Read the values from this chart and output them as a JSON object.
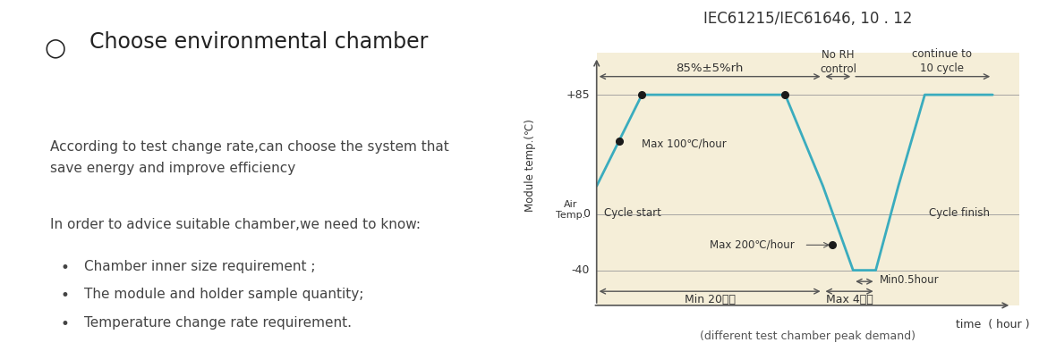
{
  "title": "IEC61215/IEC61646, 10 . 12",
  "bg_color": "#f5eed8",
  "line_color": "#3aacbe",
  "dot_color": "#1a1a1a",
  "text_color": "#333333",
  "heading": "Choose environmental chamber",
  "para1": "According to test change rate,can choose the system that\nsave energy and improve efficiency",
  "para2": "In order to advice suitable chamber,we need to know:",
  "bullets": [
    "Chamber inner size requirement ;",
    "The module and holder sample quantity;",
    "Temperature change rate requirement."
  ],
  "ylabel_main": "Module temp.(℃)",
  "ylabel_air": "Air\nTemp.",
  "xlabel": "time  ( hour )",
  "caption": "(different test chamber peak demand)",
  "annotations": {
    "humidity": "85%±5%rh",
    "no_rh": "No RH\ncontrol",
    "continue": "continue to\n10 cycle",
    "max100": "Max 100℃/hour",
    "max200": "Max 200℃/hour",
    "cycle_start": "Cycle start",
    "cycle_finish": "Cycle finish",
    "min05": "Min0.5hour",
    "min20": "Min 20小时",
    "max4": "Max 4小时"
  },
  "curve_x": [
    0.0,
    0.12,
    0.5,
    0.6,
    0.68,
    0.74,
    0.8,
    0.87,
    1.05
  ],
  "curve_y": [
    20,
    85,
    85,
    20,
    -40,
    -40,
    20,
    85,
    85
  ],
  "xlim": [
    0.0,
    1.12
  ],
  "ylim": [
    -65,
    115
  ]
}
